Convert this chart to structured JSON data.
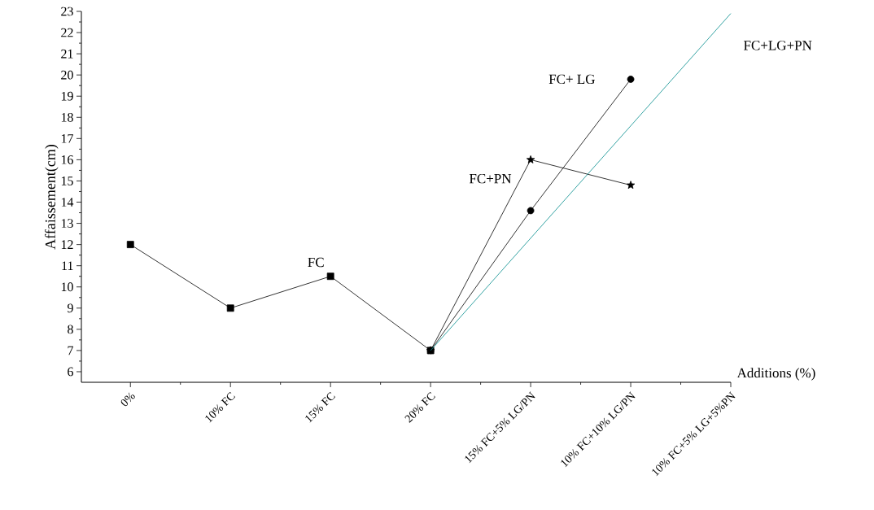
{
  "chart_data": {
    "type": "line",
    "xlabel": "Additions (%)",
    "ylabel": "Affaissement(cm)",
    "categories": [
      "0%",
      "10% FC",
      "15% FC",
      "20% FC",
      "15% FC+5% LG/PN",
      "10% FC+10% LG/PN",
      "10% FC+5% LG+5%PN"
    ],
    "ylim": [
      5.5,
      23
    ],
    "yticks": [
      6,
      7,
      8,
      9,
      10,
      11,
      12,
      13,
      14,
      15,
      16,
      17,
      18,
      19,
      20,
      21,
      22,
      23
    ],
    "grid": false,
    "legend": false,
    "series": [
      {
        "name": "FC",
        "color": "#000000",
        "marker": "square",
        "values": [
          12,
          9,
          10.5,
          7,
          null,
          null,
          null
        ]
      },
      {
        "name": "FC+ LG",
        "color": "#000000",
        "marker": "circle",
        "values": [
          null,
          null,
          null,
          7,
          13.6,
          19.8,
          null
        ]
      },
      {
        "name": "FC+PN",
        "color": "#000000",
        "marker": "star",
        "values": [
          null,
          null,
          null,
          7,
          16,
          14.8,
          null
        ]
      },
      {
        "name": "FC+LG+PN",
        "color": "#008b8b",
        "marker": "none",
        "values": [
          null,
          null,
          null,
          7,
          null,
          null,
          22.9
        ]
      }
    ]
  }
}
